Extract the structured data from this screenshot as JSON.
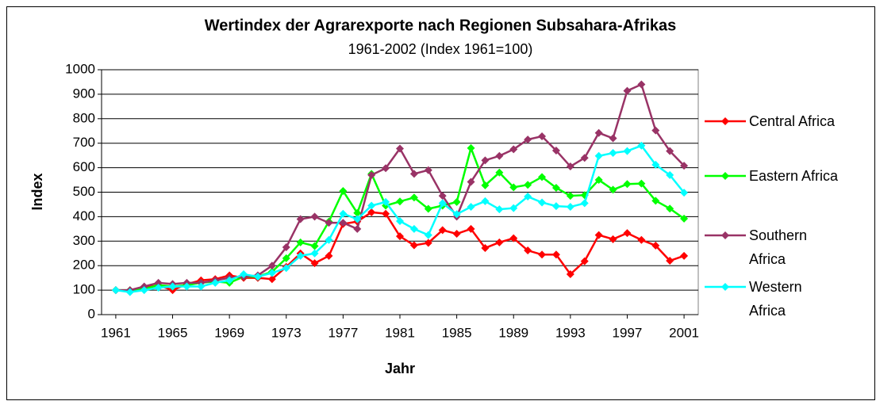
{
  "chart_data": {
    "type": "line",
    "title": "Wertindex der Agrarexporte nach Regionen Subsahara-Afrikas",
    "subtitle": "1961-2002 (Index 1961=100)",
    "x_label": "Jahr",
    "y_label": "Index",
    "x": [
      1961,
      1962,
      1963,
      1964,
      1965,
      1966,
      1967,
      1968,
      1969,
      1970,
      1971,
      1972,
      1973,
      1974,
      1975,
      1976,
      1977,
      1978,
      1979,
      1980,
      1981,
      1982,
      1983,
      1984,
      1985,
      1986,
      1987,
      1988,
      1989,
      1990,
      1991,
      1992,
      1993,
      1994,
      1995,
      1996,
      1997,
      1998,
      1999,
      2000,
      2001
    ],
    "xlim": [
      1960,
      2002
    ],
    "xticks": [
      1961,
      1965,
      1969,
      1973,
      1977,
      1981,
      1985,
      1989,
      1993,
      1997,
      2001
    ],
    "ylim": [
      0,
      1000
    ],
    "yticks": [
      0,
      100,
      200,
      300,
      400,
      500,
      600,
      700,
      800,
      900,
      1000
    ],
    "grid": true,
    "legend": "right",
    "series": [
      {
        "name": "Central Africa",
        "color": "#ff0000",
        "values": [
          100,
          95,
          110,
          120,
          100,
          125,
          140,
          145,
          160,
          150,
          150,
          145,
          195,
          250,
          210,
          240,
          370,
          380,
          418,
          412,
          320,
          283,
          293,
          345,
          330,
          350,
          272,
          295,
          312,
          262,
          245,
          245,
          165,
          218,
          325,
          308,
          333,
          305,
          282,
          220,
          240
        ]
      },
      {
        "name": "Eastern Africa",
        "color": "#00ff00",
        "values": [
          100,
          100,
          105,
          120,
          115,
          120,
          130,
          135,
          130,
          155,
          155,
          175,
          230,
          295,
          280,
          380,
          505,
          415,
          575,
          445,
          462,
          478,
          432,
          445,
          460,
          680,
          528,
          580,
          520,
          530,
          562,
          518,
          485,
          488,
          550,
          510,
          533,
          535,
          465,
          433,
          392
        ]
      },
      {
        "name": "Southern Africa",
        "color": "#993366",
        "values": [
          100,
          100,
          115,
          130,
          125,
          130,
          130,
          140,
          150,
          155,
          160,
          200,
          275,
          390,
          400,
          375,
          375,
          350,
          570,
          598,
          678,
          575,
          590,
          485,
          400,
          542,
          630,
          648,
          675,
          715,
          728,
          670,
          605,
          640,
          742,
          720,
          914,
          940,
          752,
          668,
          608
        ]
      },
      {
        "name": "Western Africa",
        "color": "#00ffff",
        "values": [
          100,
          92,
          100,
          110,
          115,
          115,
          115,
          130,
          140,
          165,
          155,
          170,
          190,
          240,
          250,
          305,
          412,
          390,
          445,
          460,
          382,
          350,
          325,
          455,
          410,
          440,
          463,
          430,
          435,
          482,
          458,
          443,
          440,
          455,
          648,
          660,
          668,
          690,
          612,
          570,
          498
        ]
      }
    ]
  }
}
